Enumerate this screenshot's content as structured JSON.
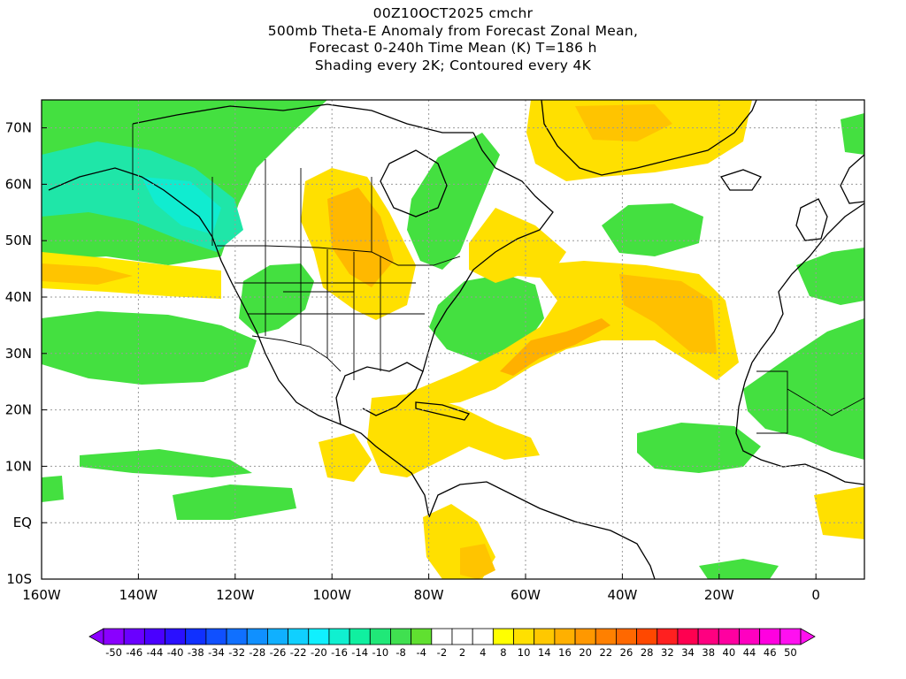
{
  "title": {
    "lines": [
      "00Z10OCT2025 cmchr",
      "500mb Theta-E Anomaly from Forecast Zonal Mean,",
      "Forecast 0-240h Time Mean (K) T=186 h",
      "Shading every 2K; Contoured every 4K"
    ]
  },
  "map": {
    "lon_range": [
      -160,
      10
    ],
    "lat_range": [
      -10,
      75
    ],
    "x_tick_labels": [
      "160W",
      "140W",
      "120W",
      "100W",
      "80W",
      "60W",
      "40W",
      "20W",
      "0"
    ],
    "y_tick_labels": [
      "10S",
      "EQ",
      "10N",
      "20N",
      "30N",
      "40N",
      "50N",
      "60N",
      "70N"
    ],
    "grid": true,
    "regions": [
      {
        "name": "north-pacific-cool",
        "sign": "negative",
        "value": -10
      },
      {
        "name": "alaska-canada-cool",
        "sign": "negative",
        "value": -14
      },
      {
        "name": "great-lakes-warm",
        "sign": "positive",
        "value": 10
      },
      {
        "name": "greenland-warm",
        "sign": "positive",
        "value": 4
      },
      {
        "name": "subtropical-atlantic-warm",
        "sign": "positive",
        "value": 8
      },
      {
        "name": "west-atlantic-cool",
        "sign": "negative",
        "value": -8
      },
      {
        "name": "north-atlantic-cool",
        "sign": "negative",
        "value": -8
      },
      {
        "name": "tropical-atlantic-cool",
        "sign": "negative",
        "value": -6
      },
      {
        "name": "west-africa-cool",
        "sign": "negative",
        "value": -8
      },
      {
        "name": "south-america-warm",
        "sign": "positive",
        "value": 4
      }
    ]
  },
  "colorbar": {
    "labels": [
      "-50",
      "-46",
      "-44",
      "-40",
      "-38",
      "-34",
      "-32",
      "-28",
      "-26",
      "-22",
      "-20",
      "-16",
      "-14",
      "-10",
      "-8",
      "-4",
      "-2",
      "2",
      "4",
      "8",
      "10",
      "14",
      "16",
      "20",
      "22",
      "26",
      "28",
      "32",
      "34",
      "38",
      "40",
      "44",
      "46",
      "50"
    ],
    "colors": [
      "#8a00ff",
      "#6a00ff",
      "#4a00ff",
      "#2a10ff",
      "#1030ff",
      "#1050ff",
      "#1070ff",
      "#1090ff",
      "#10b0ff",
      "#10d0ff",
      "#10f0ff",
      "#10f0d0",
      "#10f0a0",
      "#20e878",
      "#40e050",
      "#60e030",
      "#ffffff",
      "#ffffff",
      "#ffffff",
      "#ffff00",
      "#ffe000",
      "#ffc800",
      "#ffb000",
      "#ff9800",
      "#ff8000",
      "#ff6800",
      "#ff4800",
      "#ff2020",
      "#ff0050",
      "#ff0080",
      "#ff00a0",
      "#ff00c0",
      "#ff00e0",
      "#ff10f0"
    ],
    "min_arrow_color": "#8a00ff",
    "max_arrow_color": "#ff10f0"
  }
}
